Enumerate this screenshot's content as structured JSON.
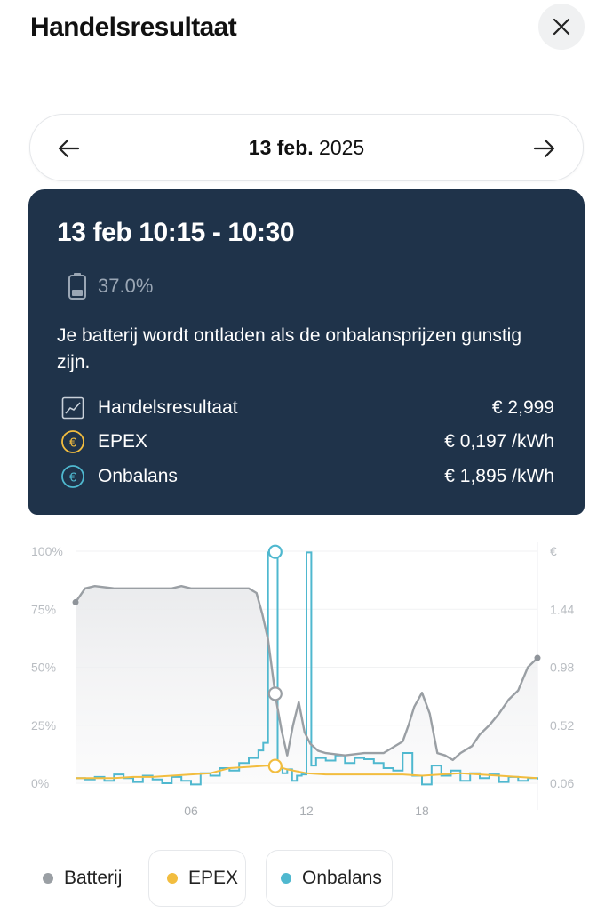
{
  "header": {
    "title": "Handelsresultaat",
    "close_icon": "close-icon"
  },
  "date_nav": {
    "day": "13 feb.",
    "year": "2025",
    "prev_icon": "arrow-left-icon",
    "next_icon": "arrow-right-icon"
  },
  "card": {
    "title": "13 feb 10:15 - 10:30",
    "battery_icon": "battery-icon",
    "battery_pct": "37.0%",
    "description": "Je batterij wordt ontladen als de onbalansprijzen gunstig zijn.",
    "metrics": [
      {
        "icon": "chart-icon",
        "label": "Handelsresultaat",
        "value": "€ 2,999"
      },
      {
        "icon": "euro-icon",
        "label": "EPEX",
        "value": "€ 0,197 /kWh",
        "color": "#f2bd3f"
      },
      {
        "icon": "euro-icon",
        "label": "Onbalans",
        "value": "€ 1,895 /kWh",
        "color": "#4fb8cf"
      }
    ]
  },
  "chart_data": {
    "type": "line",
    "left_axis": {
      "ticks": [
        "100%",
        "75%",
        "50%",
        "25%",
        "0%"
      ],
      "range": [
        0,
        100
      ]
    },
    "right_axis": {
      "ticks": [
        "€",
        "1.44",
        "0.98",
        "0.52",
        "0.06"
      ],
      "range": [
        0.06,
        1.9
      ]
    },
    "x_ticks": [
      {
        "hour": 6,
        "label": "06"
      },
      {
        "hour": 12,
        "label": "12"
      },
      {
        "hour": 18,
        "label": "18"
      }
    ],
    "x_range": [
      0,
      24
    ],
    "colors": {
      "batterij": "#9a9fa4",
      "epex": "#f2bd3f",
      "onbalans": "#4fb8cf"
    },
    "selected_hour": 10.375,
    "series": [
      {
        "name": "Batterij",
        "x": [
          0,
          0.5,
          1,
          2,
          3,
          4,
          5,
          5.5,
          6,
          7,
          8,
          8.5,
          9,
          9.4,
          9.7,
          10,
          10.4,
          10.7,
          11,
          11.3,
          11.6,
          11.9,
          12.2,
          12.6,
          13,
          14,
          15,
          15.5,
          16,
          16.8,
          17,
          17.3,
          17.6,
          18,
          18.4,
          18.8,
          19.2,
          19.6,
          20,
          20.6,
          21,
          21.5,
          22,
          22.5,
          23,
          23.5,
          24
        ],
        "y": [
          78,
          84,
          85,
          84,
          84,
          84,
          84,
          85,
          84,
          84,
          84,
          84,
          84,
          82,
          73,
          62,
          37,
          23,
          12,
          25,
          35,
          22,
          17,
          14,
          13,
          12,
          13,
          13,
          13,
          17,
          18,
          25,
          33,
          39,
          30,
          13,
          12,
          10,
          13,
          16,
          21,
          25,
          30,
          36,
          40,
          50,
          54
        ]
      },
      {
        "name": "EPEX",
        "x": [
          0,
          1,
          2,
          3,
          4,
          5,
          6,
          7,
          8,
          9,
          10,
          10.4,
          11,
          12,
          13,
          14,
          15,
          16,
          17,
          18,
          19,
          20,
          21,
          22,
          23,
          24
        ],
        "y": [
          0.1,
          0.1,
          0.1,
          0.11,
          0.11,
          0.12,
          0.13,
          0.14,
          0.18,
          0.19,
          0.2,
          0.197,
          0.17,
          0.14,
          0.13,
          0.13,
          0.13,
          0.13,
          0.13,
          0.12,
          0.13,
          0.14,
          0.13,
          0.12,
          0.11,
          0.1
        ]
      },
      {
        "name": "Onbalans",
        "x": [
          0,
          0.5,
          1,
          1.5,
          2,
          2.5,
          3,
          3.5,
          4,
          4.5,
          5,
          5.5,
          6,
          6.5,
          7,
          7.5,
          8,
          8.5,
          9,
          9.5,
          9.75,
          10,
          10.25,
          10.5,
          10.75,
          11,
          11.25,
          11.5,
          11.75,
          12,
          12.25,
          12.5,
          13,
          13.5,
          14,
          14.5,
          15,
          15.5,
          16,
          16.5,
          17,
          17.5,
          18,
          18.5,
          19,
          19.5,
          20,
          20.5,
          21,
          21.5,
          22,
          22.5,
          23,
          23.5,
          24
        ],
        "y": [
          0.1,
          0.09,
          0.11,
          0.08,
          0.13,
          0.1,
          0.07,
          0.12,
          0.09,
          0.06,
          0.11,
          0.08,
          0.05,
          0.14,
          0.12,
          0.18,
          0.16,
          0.22,
          0.26,
          0.32,
          0.38,
          1.89,
          1.895,
          0.19,
          0.14,
          0.17,
          0.08,
          0.12,
          0.13,
          1.89,
          0.2,
          0.26,
          0.24,
          0.28,
          0.22,
          0.26,
          0.25,
          0.22,
          0.18,
          0.16,
          0.3,
          0.12,
          0.05,
          0.2,
          0.12,
          0.16,
          0.08,
          0.14,
          0.1,
          0.13,
          0.07,
          0.11,
          0.08,
          0.1,
          0.09
        ]
      }
    ]
  },
  "legend": [
    {
      "label": "Batterij",
      "color": "#9a9fa4"
    },
    {
      "label": "EPEX",
      "color": "#f2bd3f"
    },
    {
      "label": "Onbalans",
      "color": "#4fb8cf"
    }
  ]
}
